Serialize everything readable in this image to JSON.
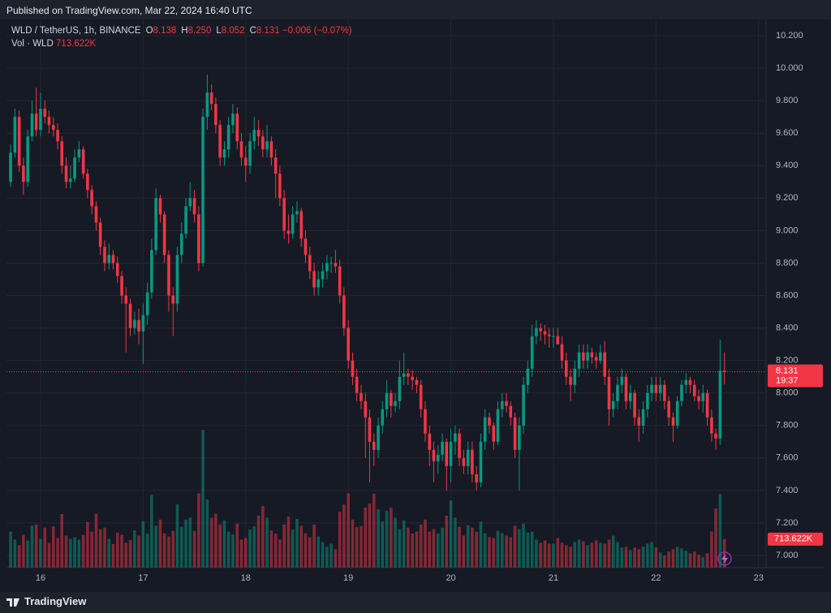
{
  "header": {
    "published": "Published on TradingView.com, Mar 22, 2024 16:40 UTC"
  },
  "chart_data": {
    "type": "candlestick",
    "title": "WLD / TetherUS, 1h, BINANCE",
    "quote": [
      {
        "key": "O",
        "text": "8.138"
      },
      {
        "key": "H",
        "text": "8.250"
      },
      {
        "key": "L",
        "text": "8.052"
      },
      {
        "key": "C",
        "text": "8.131"
      }
    ],
    "change": "−0.006 (−0.07%)",
    "volume_title": "Vol · WLD",
    "volume_text": "713.622K",
    "countdown": "19:37",
    "up_color": "#089981",
    "down_color": "#f23645",
    "x": [
      15.708,
      15.75,
      15.792,
      15.833,
      15.875,
      15.917,
      15.958,
      16,
      16.042,
      16.083,
      16.125,
      16.167,
      16.208,
      16.25,
      16.292,
      16.333,
      16.375,
      16.417,
      16.458,
      16.5,
      16.542,
      16.583,
      16.625,
      16.667,
      16.708,
      16.75,
      16.792,
      16.833,
      16.875,
      16.917,
      16.958,
      17,
      17.042,
      17.083,
      17.125,
      17.167,
      17.208,
      17.25,
      17.292,
      17.333,
      17.375,
      17.417,
      17.458,
      17.5,
      17.542,
      17.583,
      17.625,
      17.667,
      17.708,
      17.75,
      17.792,
      17.833,
      17.875,
      17.917,
      17.958,
      18,
      18.042,
      18.083,
      18.125,
      18.167,
      18.208,
      18.25,
      18.292,
      18.333,
      18.375,
      18.417,
      18.458,
      18.5,
      18.542,
      18.583,
      18.625,
      18.667,
      18.708,
      18.75,
      18.792,
      18.833,
      18.875,
      18.917,
      18.958,
      19,
      19.042,
      19.083,
      19.125,
      19.167,
      19.208,
      19.25,
      19.292,
      19.333,
      19.375,
      19.417,
      19.458,
      19.5,
      19.542,
      19.583,
      19.625,
      19.667,
      19.708,
      19.75,
      19.792,
      19.833,
      19.875,
      19.917,
      19.958,
      20,
      20.042,
      20.083,
      20.125,
      20.167,
      20.208,
      20.25,
      20.292,
      20.333,
      20.375,
      20.417,
      20.458,
      20.5,
      20.542,
      20.583,
      20.625,
      20.667,
      20.708,
      20.75,
      20.792,
      20.833,
      20.875,
      20.917,
      20.958,
      21,
      21.042,
      21.083,
      21.125,
      21.167,
      21.208,
      21.25,
      21.292,
      21.333,
      21.375,
      21.417,
      21.458,
      21.5,
      21.542,
      21.583,
      21.625,
      21.667,
      21.708,
      21.75,
      21.792,
      21.833,
      21.875,
      21.917,
      21.958,
      22,
      22.042,
      22.083,
      22.125,
      22.167,
      22.208,
      22.25,
      22.292,
      22.333,
      22.375,
      22.417,
      22.458,
      22.5,
      22.542,
      22.583,
      22.625,
      22.667
    ],
    "open": [
      9.3,
      9.48,
      9.7,
      9.4,
      9.3,
      9.58,
      9.72,
      9.62,
      9.75,
      9.7,
      9.65,
      9.62,
      9.55,
      9.4,
      9.3,
      9.32,
      9.45,
      9.5,
      9.35,
      9.25,
      9.15,
      9.05,
      8.9,
      8.8,
      8.85,
      8.8,
      8.72,
      8.6,
      8.55,
      8.4,
      8.45,
      8.38,
      8.48,
      8.62,
      8.88,
      9.2,
      9.1,
      8.85,
      8.6,
      8.55,
      8.85,
      8.98,
      9.15,
      9.2,
      9.1,
      8.8,
      9.7,
      9.85,
      9.78,
      9.65,
      9.45,
      9.5,
      9.65,
      9.72,
      9.55,
      9.45,
      9.4,
      9.55,
      9.62,
      9.58,
      9.5,
      9.55,
      9.45,
      9.35,
      9.2,
      9.0,
      8.98,
      9.1,
      9.12,
      8.95,
      8.85,
      8.75,
      8.65,
      8.7,
      8.75,
      8.8,
      8.8,
      8.78,
      8.6,
      8.4,
      8.2,
      8.1,
      8.0,
      7.95,
      7.85,
      7.7,
      7.65,
      7.8,
      7.9,
      8.0,
      7.92,
      7.95,
      8.1,
      8.12,
      8.1,
      8.08,
      8.05,
      7.9,
      7.75,
      7.65,
      7.58,
      7.62,
      7.7,
      7.55,
      7.7,
      7.75,
      7.6,
      7.55,
      7.65,
      7.5,
      7.45,
      7.7,
      7.85,
      7.8,
      7.7,
      7.9,
      7.95,
      7.92,
      7.85,
      7.65,
      7.8,
      8.05,
      8.15,
      8.35,
      8.4,
      8.38,
      8.36,
      8.35,
      8.35,
      8.3,
      8.2,
      8.1,
      8.05,
      8.15,
      8.25,
      8.2,
      8.25,
      8.22,
      8.2,
      8.25,
      8.1,
      7.9,
      7.95,
      8.05,
      8.1,
      7.95,
      8.0,
      7.85,
      7.8,
      7.9,
      8.0,
      8.05,
      8.0,
      8.05,
      7.95,
      7.85,
      7.8,
      7.95,
      8.05,
      8.08,
      8.05,
      7.98,
      7.95,
      8.0,
      7.85,
      7.75,
      7.72,
      8.138
    ],
    "high": [
      9.53,
      9.75,
      9.74,
      9.45,
      9.62,
      9.8,
      9.88,
      9.85,
      9.8,
      9.74,
      9.7,
      9.66,
      9.58,
      9.45,
      9.4,
      9.5,
      9.55,
      9.52,
      9.38,
      9.28,
      9.18,
      9.08,
      8.94,
      8.92,
      8.88,
      8.84,
      8.75,
      8.65,
      8.58,
      8.5,
      8.52,
      8.55,
      8.68,
      8.95,
      9.26,
      9.22,
      9.12,
      8.88,
      8.65,
      8.9,
      9.05,
      9.2,
      9.3,
      9.25,
      9.15,
      9.75,
      9.96,
      9.9,
      9.82,
      9.68,
      9.55,
      9.7,
      9.78,
      9.76,
      9.6,
      9.52,
      9.6,
      9.7,
      9.68,
      9.62,
      9.65,
      9.58,
      9.5,
      9.4,
      9.25,
      9.1,
      9.15,
      9.18,
      9.14,
      9.0,
      8.9,
      8.8,
      8.75,
      8.8,
      8.85,
      8.84,
      8.88,
      8.82,
      8.65,
      8.45,
      8.25,
      8.15,
      8.05,
      8.0,
      7.9,
      7.75,
      7.85,
      7.95,
      8.08,
      8.02,
      8.0,
      8.2,
      8.25,
      8.15,
      8.14,
      8.1,
      8.08,
      7.95,
      7.8,
      7.7,
      7.68,
      7.75,
      7.72,
      7.78,
      7.8,
      7.78,
      7.65,
      7.7,
      7.7,
      7.55,
      7.75,
      7.9,
      7.88,
      7.82,
      7.95,
      8.0,
      8.0,
      7.95,
      7.88,
      7.85,
      8.1,
      8.2,
      8.42,
      8.45,
      8.43,
      8.42,
      8.4,
      8.4,
      8.4,
      8.35,
      8.25,
      8.15,
      8.2,
      8.3,
      8.3,
      8.3,
      8.28,
      8.25,
      8.3,
      8.32,
      8.15,
      8.0,
      8.1,
      8.15,
      8.12,
      8.05,
      8.02,
      7.9,
      7.95,
      8.05,
      8.1,
      8.1,
      8.1,
      8.08,
      7.98,
      7.88,
      7.98,
      8.08,
      8.12,
      8.1,
      8.08,
      8.02,
      8.05,
      8.02,
      7.9,
      7.78,
      8.33,
      8.25
    ],
    "low": [
      9.27,
      9.45,
      9.36,
      9.22,
      9.27,
      9.55,
      9.58,
      9.58,
      9.66,
      9.6,
      9.58,
      9.5,
      9.35,
      9.26,
      9.26,
      9.3,
      9.42,
      9.32,
      9.2,
      9.1,
      9.0,
      8.85,
      8.75,
      8.76,
      8.76,
      8.68,
      8.55,
      8.25,
      8.35,
      8.36,
      8.3,
      8.18,
      8.42,
      8.58,
      8.85,
      9.05,
      8.8,
      8.5,
      8.35,
      8.5,
      8.8,
      8.95,
      9.12,
      9.05,
      8.75,
      8.78,
      9.62,
      9.74,
      9.6,
      9.4,
      9.4,
      9.45,
      9.6,
      9.5,
      9.4,
      9.3,
      9.35,
      9.5,
      9.52,
      9.45,
      9.45,
      9.4,
      9.2,
      9.15,
      8.95,
      8.92,
      8.95,
      9.05,
      8.9,
      8.8,
      8.7,
      8.6,
      8.6,
      8.65,
      8.7,
      8.74,
      8.74,
      8.55,
      8.35,
      8.15,
      8.05,
      7.95,
      7.9,
      7.6,
      7.45,
      7.55,
      7.6,
      7.75,
      7.85,
      7.85,
      7.88,
      7.9,
      8.05,
      8.05,
      8.02,
      8.0,
      7.85,
      7.7,
      7.55,
      7.45,
      7.5,
      7.58,
      7.4,
      7.45,
      7.62,
      7.55,
      7.5,
      7.5,
      7.45,
      7.4,
      7.42,
      7.65,
      7.75,
      7.65,
      7.68,
      7.85,
      7.88,
      7.8,
      7.6,
      7.4,
      7.75,
      8.0,
      8.1,
      8.3,
      8.32,
      8.3,
      8.28,
      8.28,
      8.3,
      8.15,
      8.05,
      7.95,
      8.0,
      8.1,
      8.15,
      8.15,
      8.18,
      8.15,
      8.18,
      8.05,
      7.8,
      7.85,
      7.9,
      8.0,
      7.9,
      7.9,
      7.8,
      7.7,
      7.75,
      7.85,
      7.95,
      7.95,
      7.95,
      7.9,
      7.8,
      7.7,
      7.78,
      7.92,
      8.0,
      8.0,
      7.95,
      7.9,
      7.88,
      7.8,
      7.7,
      7.65,
      7.68,
      8.052
    ],
    "close": [
      9.48,
      9.7,
      9.4,
      9.3,
      9.58,
      9.72,
      9.62,
      9.75,
      9.7,
      9.65,
      9.62,
      9.55,
      9.4,
      9.3,
      9.32,
      9.45,
      9.5,
      9.35,
      9.25,
      9.15,
      9.05,
      8.9,
      8.8,
      8.85,
      8.8,
      8.72,
      8.6,
      8.55,
      8.4,
      8.45,
      8.38,
      8.48,
      8.62,
      8.88,
      9.2,
      9.1,
      8.85,
      8.6,
      8.55,
      8.85,
      8.98,
      9.15,
      9.2,
      9.1,
      8.8,
      9.7,
      9.85,
      9.78,
      9.65,
      9.45,
      9.5,
      9.65,
      9.72,
      9.55,
      9.45,
      9.4,
      9.55,
      9.62,
      9.58,
      9.5,
      9.55,
      9.45,
      9.35,
      9.2,
      9.0,
      8.98,
      9.1,
      9.12,
      8.95,
      8.85,
      8.75,
      8.65,
      8.7,
      8.75,
      8.8,
      8.8,
      8.78,
      8.6,
      8.4,
      8.2,
      8.1,
      8.0,
      7.95,
      7.85,
      7.7,
      7.65,
      7.8,
      7.9,
      8.0,
      7.92,
      7.95,
      8.1,
      8.12,
      8.1,
      8.08,
      8.05,
      7.9,
      7.75,
      7.65,
      7.58,
      7.62,
      7.7,
      7.55,
      7.7,
      7.75,
      7.6,
      7.55,
      7.65,
      7.5,
      7.45,
      7.7,
      7.85,
      7.8,
      7.7,
      7.9,
      7.95,
      7.92,
      7.85,
      7.65,
      7.8,
      8.05,
      8.15,
      8.35,
      8.4,
      8.38,
      8.36,
      8.35,
      8.35,
      8.3,
      8.2,
      8.1,
      8.05,
      8.15,
      8.25,
      8.2,
      8.25,
      8.22,
      8.2,
      8.25,
      8.1,
      7.9,
      7.95,
      8.05,
      8.1,
      7.95,
      8.0,
      7.85,
      7.8,
      7.9,
      8.0,
      8.05,
      8.0,
      8.05,
      7.95,
      7.85,
      7.8,
      7.95,
      8.05,
      8.08,
      8.05,
      7.98,
      7.95,
      8.0,
      7.85,
      7.75,
      7.72,
      8.138,
      8.131
    ],
    "volume": [
      900000,
      700000,
      560000,
      820000,
      680000,
      1050000,
      1080000,
      720000,
      1000000,
      620000,
      1030000,
      740000,
      1340000,
      800000,
      720000,
      760000,
      700000,
      820000,
      1140000,
      900000,
      1350000,
      960000,
      1000000,
      720000,
      590000,
      880000,
      820000,
      620000,
      690000,
      930000,
      800000,
      1160000,
      850000,
      1820000,
      1050000,
      1200000,
      860000,
      780000,
      920000,
      1580000,
      1020000,
      1200000,
      1250000,
      920000,
      1860000,
      3450000,
      1700000,
      1250000,
      1350000,
      1080000,
      1180000,
      900000,
      830000,
      1100000,
      700000,
      740000,
      950000,
      1030000,
      1300000,
      1540000,
      1250000,
      930000,
      850000,
      700000,
      1080000,
      1280000,
      950000,
      1220000,
      1050000,
      860000,
      760000,
      1080000,
      780000,
      640000,
      520000,
      600000,
      460000,
      1400000,
      1580000,
      1860000,
      1200000,
      1010000,
      1040000,
      1500000,
      1600000,
      1850000,
      1460000,
      1150000,
      1420000,
      1500000,
      1250000,
      960000,
      1180000,
      1000000,
      850000,
      900000,
      1080000,
      1200000,
      900000,
      960000,
      850000,
      1000000,
      1300000,
      1680000,
      1250000,
      1020000,
      800000,
      1060000,
      1000000,
      900000,
      1150000,
      860000,
      760000,
      740000,
      920000,
      860000,
      800000,
      760000,
      1050000,
      960000,
      1100000,
      880000,
      900000,
      700000,
      620000,
      680000,
      600000,
      600000,
      740000,
      620000,
      560000,
      520000,
      640000,
      700000,
      660000,
      560000,
      620000,
      680000,
      620000,
      600000,
      700000,
      800000,
      640000,
      500000,
      520000,
      440000,
      500000,
      460000,
      520000,
      600000,
      640000,
      500000,
      380000,
      300000,
      400000,
      460000,
      520000,
      480000,
      420000,
      360000,
      400000,
      320000,
      260000,
      360000,
      900000,
      1480000,
      1840000,
      713622
    ],
    "xlim": [
      15.668,
      23.073
    ],
    "xticks": [
      16,
      17,
      18,
      19,
      20,
      21,
      22,
      23
    ],
    "ylim": [
      6.925,
      10.3
    ],
    "yticks": [
      {
        "value": 7,
        "label": "7.000"
      },
      {
        "value": 7.2,
        "label": "7.200"
      },
      {
        "value": 7.4,
        "label": "7.400"
      },
      {
        "value": 7.6,
        "label": "7.600"
      },
      {
        "value": 7.8,
        "label": "7.800"
      },
      {
        "value": 8,
        "label": "8.000"
      },
      {
        "value": 8.2,
        "label": "8.200"
      },
      {
        "value": 8.4,
        "label": "8.400"
      },
      {
        "value": 8.6,
        "label": "8.600"
      },
      {
        "value": 8.8,
        "label": "8.800"
      },
      {
        "value": 9,
        "label": "9.000"
      },
      {
        "value": 9.2,
        "label": "9.200"
      },
      {
        "value": 9.4,
        "label": "9.400"
      },
      {
        "value": 9.6,
        "label": "9.600"
      },
      {
        "value": 9.8,
        "label": "9.800"
      },
      {
        "value": 10,
        "label": "10.000"
      },
      {
        "value": 10.2,
        "label": "10.200"
      }
    ],
    "grid": true
  },
  "footer": {
    "brand": "TradingView"
  }
}
